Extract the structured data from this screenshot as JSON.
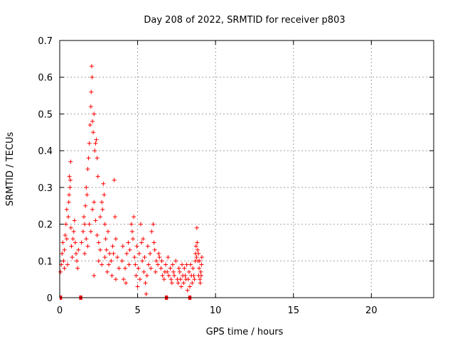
{
  "chart_data": {
    "type": "scatter",
    "title": "Day 208 of 2022, SRMTID for receiver p803",
    "xlabel": "GPS time / hours",
    "ylabel": "SRMTID / TECUs",
    "xlim": [
      0,
      24
    ],
    "ylim": [
      0,
      0.7
    ],
    "xticks": [
      0,
      5,
      10,
      15,
      20
    ],
    "xtick_labels": [
      "0",
      "5",
      "10",
      "15",
      "20"
    ],
    "yticks": [
      0,
      0.1,
      0.2,
      0.3,
      0.4,
      0.5,
      0.6,
      0.7
    ],
    "ytick_labels": [
      "0",
      "0.1",
      "0.2",
      "0.3",
      "0.4",
      "0.5",
      "0.6",
      "0.7"
    ],
    "grid": true,
    "marker": "+",
    "color": "#ff0000",
    "series": [
      {
        "name": "SRMTID",
        "points": [
          [
            0.05,
            0.07
          ],
          [
            0.1,
            0.09
          ],
          [
            0.15,
            0.12
          ],
          [
            0.2,
            0.15
          ],
          [
            0.25,
            0.1
          ],
          [
            0.3,
            0.13
          ],
          [
            0.35,
            0.17
          ],
          [
            0.4,
            0.2
          ],
          [
            0.45,
            0.16
          ],
          [
            0.5,
            0.09
          ],
          [
            0.55,
            0.22
          ],
          [
            0.6,
            0.28
          ],
          [
            0.62,
            0.33
          ],
          [
            0.66,
            0.3
          ],
          [
            0.7,
            0.37
          ],
          [
            0.72,
            0.19
          ],
          [
            0.75,
            0.14
          ],
          [
            0.8,
            0.11
          ],
          [
            0.85,
            0.16
          ],
          [
            0.9,
            0.18
          ],
          [
            0.95,
            0.21
          ],
          [
            1.0,
            0.15
          ],
          [
            1.05,
            0.12
          ],
          [
            1.1,
            0.1
          ],
          [
            1.15,
            0.08
          ],
          [
            1.2,
            0.13
          ],
          [
            0.3,
            0.08
          ],
          [
            0.45,
            0.24
          ],
          [
            0.58,
            0.26
          ],
          [
            0.68,
            0.32
          ],
          [
            1.4,
            0.15
          ],
          [
            1.5,
            0.18
          ],
          [
            1.55,
            0.22
          ],
          [
            1.6,
            0.2
          ],
          [
            1.65,
            0.25
          ],
          [
            1.7,
            0.3
          ],
          [
            1.75,
            0.28
          ],
          [
            1.8,
            0.35
          ],
          [
            1.85,
            0.38
          ],
          [
            1.9,
            0.42
          ],
          [
            1.95,
            0.47
          ],
          [
            2.0,
            0.52
          ],
          [
            2.02,
            0.56
          ],
          [
            2.05,
            0.63
          ],
          [
            2.08,
            0.6
          ],
          [
            2.1,
            0.48
          ],
          [
            2.15,
            0.45
          ],
          [
            2.2,
            0.5
          ],
          [
            2.25,
            0.4
          ],
          [
            2.3,
            0.42
          ],
          [
            2.35,
            0.43
          ],
          [
            2.4,
            0.38
          ],
          [
            2.45,
            0.33
          ],
          [
            1.6,
            0.12
          ],
          [
            1.7,
            0.16
          ],
          [
            1.8,
            0.14
          ],
          [
            1.9,
            0.2
          ],
          [
            2.0,
            0.18
          ],
          [
            2.1,
            0.24
          ],
          [
            2.2,
            0.26
          ],
          [
            2.3,
            0.21
          ],
          [
            2.4,
            0.17
          ],
          [
            2.5,
            0.15
          ],
          [
            2.6,
            0.22
          ],
          [
            2.7,
            0.26
          ],
          [
            2.75,
            0.24
          ],
          [
            2.8,
            0.31
          ],
          [
            2.85,
            0.28
          ],
          [
            2.9,
            0.2
          ],
          [
            2.95,
            0.16
          ],
          [
            3.0,
            0.13
          ],
          [
            3.1,
            0.18
          ],
          [
            3.2,
            0.12
          ],
          [
            3.3,
            0.1
          ],
          [
            3.4,
            0.14
          ],
          [
            3.5,
            0.32
          ],
          [
            3.55,
            0.22
          ],
          [
            3.6,
            0.16
          ],
          [
            3.7,
            0.11
          ],
          [
            3.8,
            0.08
          ],
          [
            2.2,
            0.06
          ],
          [
            2.5,
            0.1
          ],
          [
            2.6,
            0.13
          ],
          [
            2.7,
            0.09
          ],
          [
            2.9,
            0.11
          ],
          [
            3.05,
            0.07
          ],
          [
            3.15,
            0.09
          ],
          [
            3.35,
            0.06
          ],
          [
            3.45,
            0.12
          ],
          [
            3.6,
            0.05
          ],
          [
            4.0,
            0.1
          ],
          [
            4.1,
            0.05
          ],
          [
            4.2,
            0.08
          ],
          [
            4.3,
            0.12
          ],
          [
            4.4,
            0.15
          ],
          [
            4.5,
            0.13
          ],
          [
            4.6,
            0.2
          ],
          [
            4.65,
            0.18
          ],
          [
            4.7,
            0.16
          ],
          [
            4.8,
            0.11
          ],
          [
            4.85,
            0.09
          ],
          [
            4.9,
            0.06
          ],
          [
            5.0,
            0.03
          ],
          [
            5.05,
            0.08
          ],
          [
            5.1,
            0.12
          ],
          [
            5.2,
            0.2
          ],
          [
            5.25,
            0.15
          ],
          [
            5.3,
            0.1
          ],
          [
            5.4,
            0.07
          ],
          [
            5.5,
            0.04
          ],
          [
            5.55,
            0.01
          ],
          [
            5.6,
            0.06
          ],
          [
            5.7,
            0.09
          ],
          [
            5.8,
            0.12
          ],
          [
            5.9,
            0.18
          ],
          [
            6.0,
            0.2
          ],
          [
            6.05,
            0.15
          ],
          [
            6.1,
            0.13
          ],
          [
            6.2,
            0.1
          ],
          [
            6.3,
            0.09
          ],
          [
            6.4,
            0.11
          ],
          [
            6.5,
            0.08
          ],
          [
            6.6,
            0.06
          ],
          [
            6.7,
            0.05
          ],
          [
            6.8,
            0.09
          ],
          [
            6.9,
            0.07
          ],
          [
            7.0,
            0.06
          ],
          [
            7.1,
            0.08
          ],
          [
            7.2,
            0.04
          ],
          [
            7.3,
            0.07
          ],
          [
            4.05,
            0.14
          ],
          [
            4.25,
            0.04
          ],
          [
            4.45,
            0.09
          ],
          [
            4.75,
            0.22
          ],
          [
            4.95,
            0.14
          ],
          [
            5.15,
            0.05
          ],
          [
            5.35,
            0.16
          ],
          [
            5.45,
            0.11
          ],
          [
            5.65,
            0.14
          ],
          [
            5.85,
            0.08
          ],
          [
            6.15,
            0.07
          ],
          [
            6.35,
            0.12
          ],
          [
            6.55,
            0.1
          ],
          [
            6.75,
            0.07
          ],
          [
            6.95,
            0.11
          ],
          [
            7.15,
            0.05
          ],
          [
            7.25,
            0.09
          ],
          [
            7.35,
            0.06
          ],
          [
            7.45,
            0.1
          ],
          [
            7.55,
            0.05
          ],
          [
            7.6,
            0.04
          ],
          [
            7.7,
            0.07
          ],
          [
            7.8,
            0.03
          ],
          [
            7.9,
            0.06
          ],
          [
            8.0,
            0.08
          ],
          [
            8.1,
            0.05
          ],
          [
            8.2,
            0.02
          ],
          [
            8.3,
            0.07
          ],
          [
            8.4,
            0.09
          ],
          [
            8.5,
            0.04
          ],
          [
            8.6,
            0.06
          ],
          [
            8.7,
            0.1
          ],
          [
            8.75,
            0.14
          ],
          [
            8.8,
            0.19
          ],
          [
            8.85,
            0.13
          ],
          [
            8.9,
            0.12
          ],
          [
            8.95,
            0.08
          ],
          [
            9.0,
            0.05
          ],
          [
            9.05,
            0.07
          ],
          [
            9.1,
            0.09
          ],
          [
            7.65,
            0.08
          ],
          [
            7.75,
            0.05
          ],
          [
            7.85,
            0.09
          ],
          [
            7.95,
            0.04
          ],
          [
            8.05,
            0.06
          ],
          [
            8.15,
            0.09
          ],
          [
            8.25,
            0.05
          ],
          [
            8.35,
            0.03
          ],
          [
            8.45,
            0.06
          ],
          [
            8.55,
            0.08
          ],
          [
            8.65,
            0.05
          ],
          [
            8.72,
            0.12
          ],
          [
            8.78,
            0.11
          ],
          [
            8.82,
            0.15
          ],
          [
            8.88,
            0.1
          ],
          [
            8.92,
            0.06
          ],
          [
            8.98,
            0.1
          ],
          [
            9.02,
            0.04
          ],
          [
            9.08,
            0.06
          ],
          [
            9.12,
            0.11
          ]
        ]
      }
    ],
    "gap_markers": [
      {
        "x_start": 0.0,
        "x_end": 0.15
      },
      {
        "x_start": 1.25,
        "x_end": 1.45
      },
      {
        "x_start": 6.75,
        "x_end": 6.95
      },
      {
        "x_start": 8.25,
        "x_end": 8.45
      }
    ]
  }
}
